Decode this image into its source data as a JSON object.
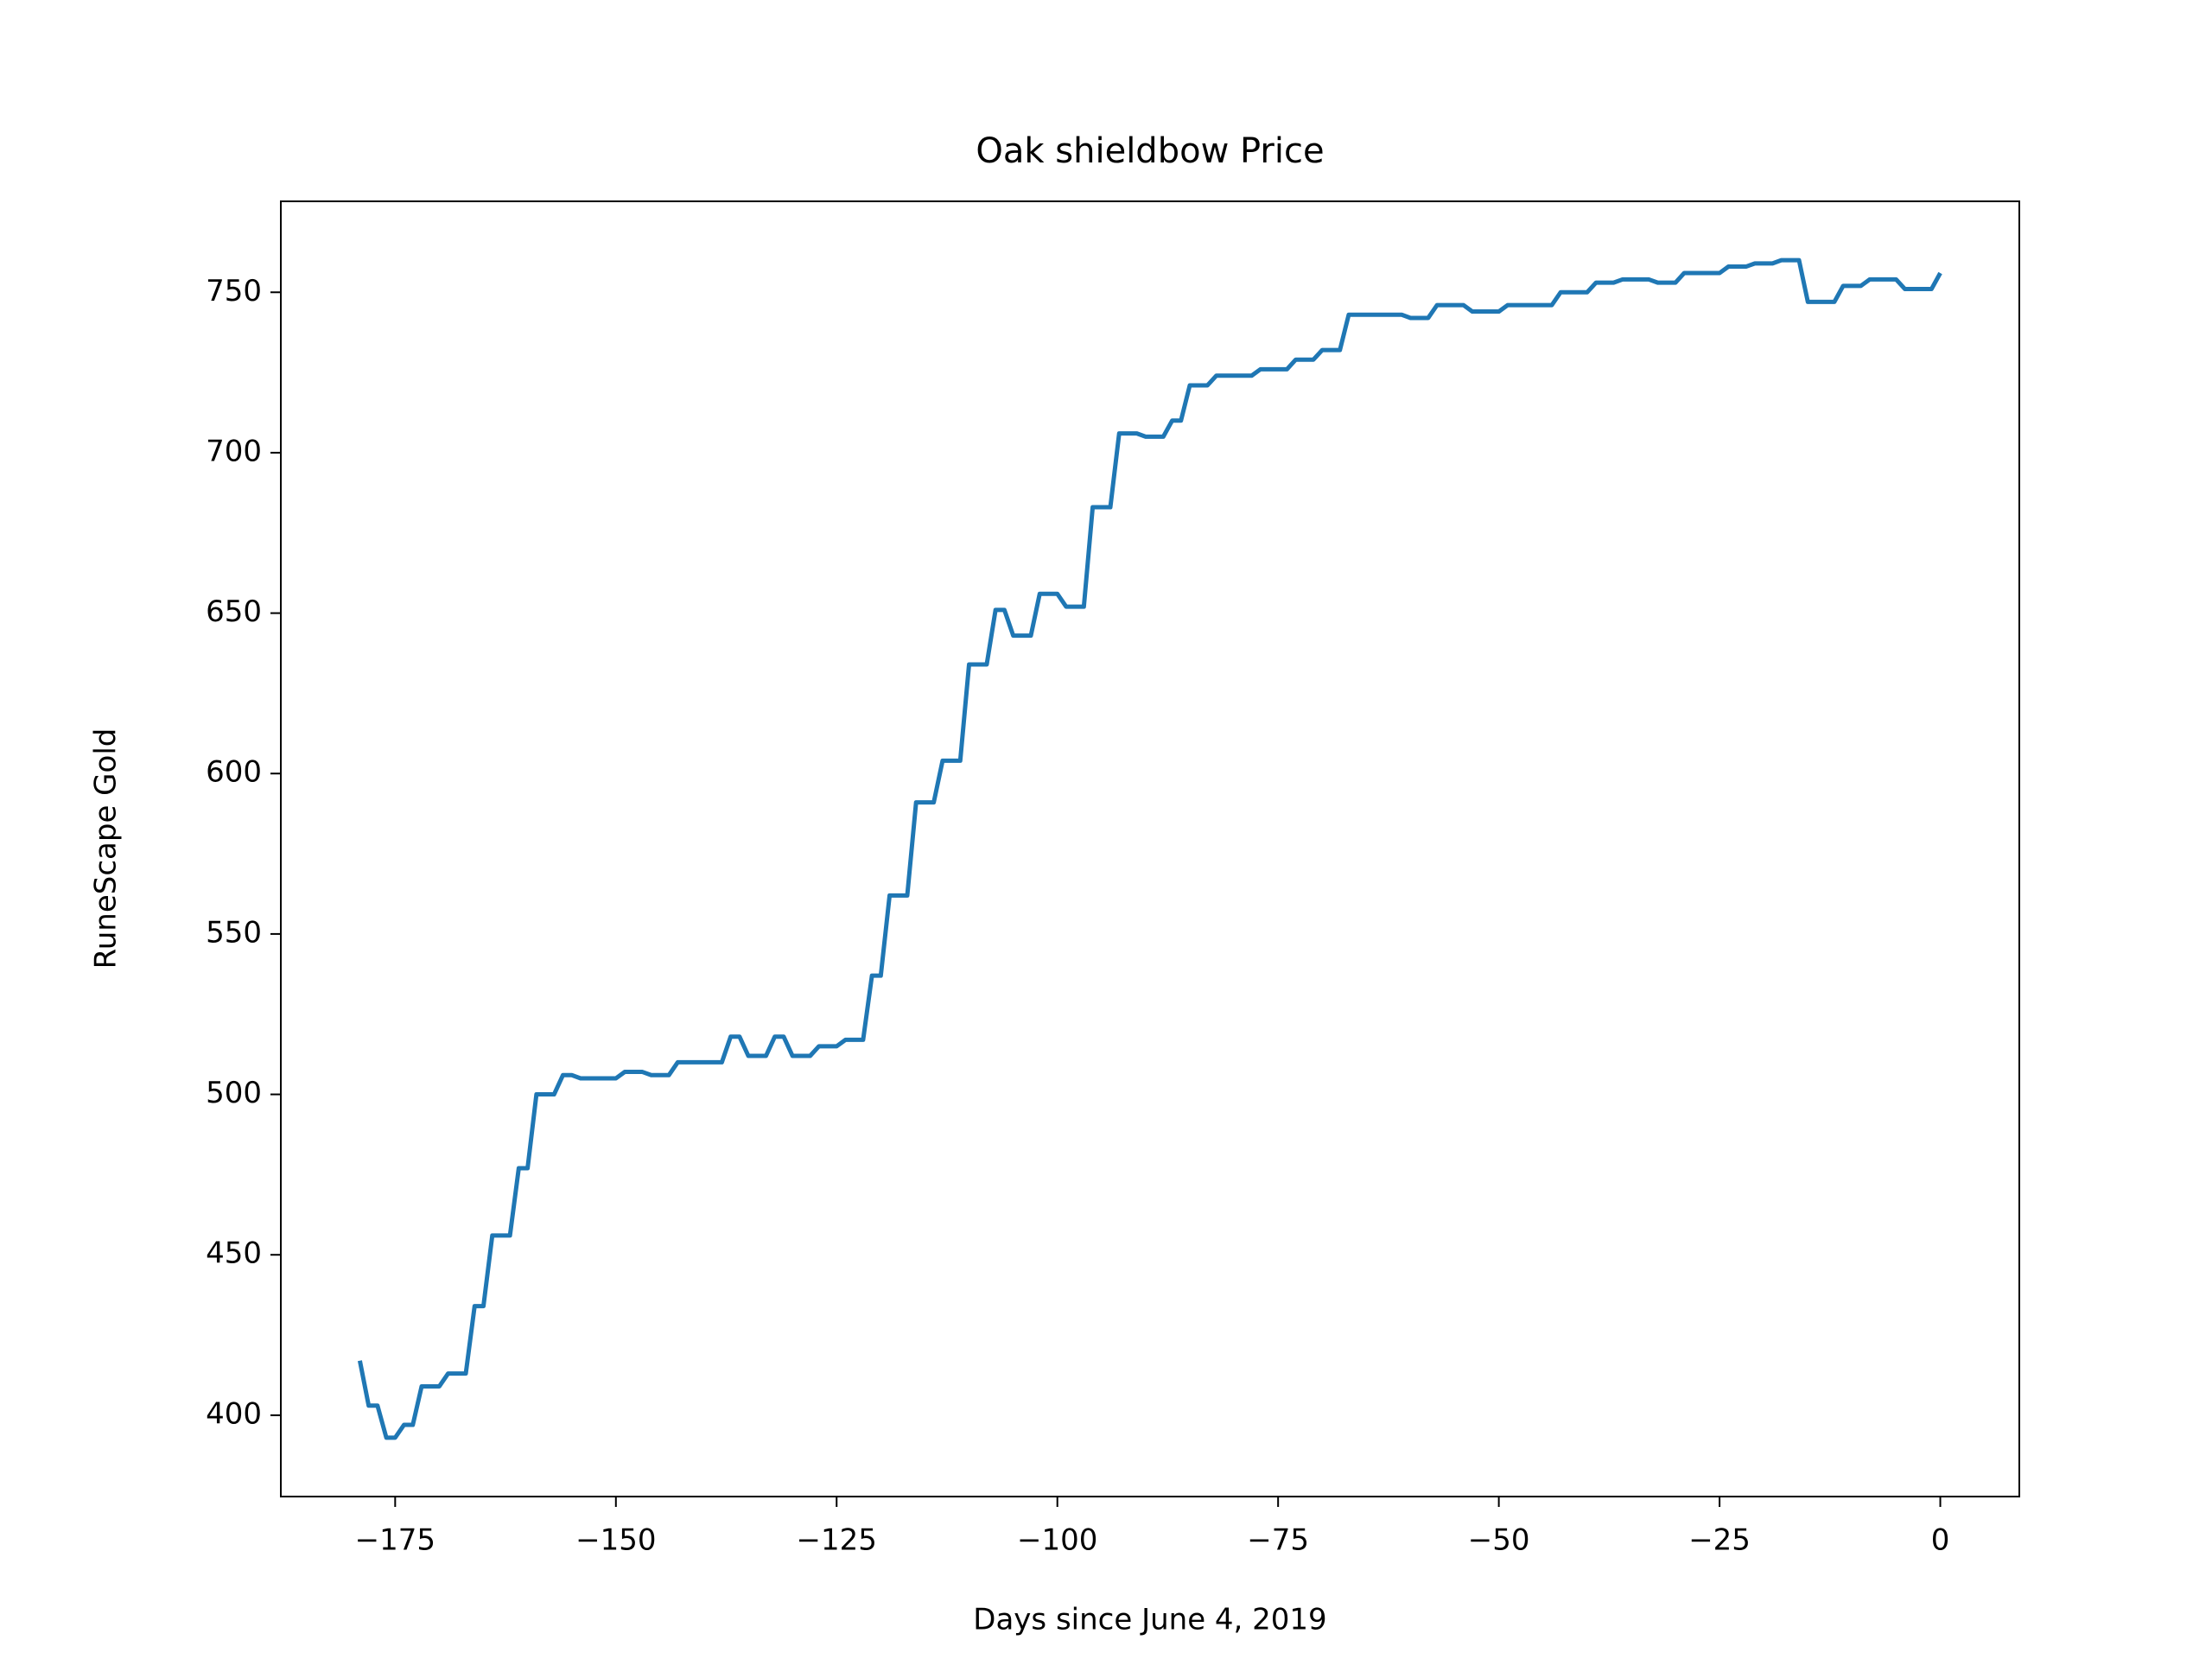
{
  "chart_data": {
    "type": "line",
    "title": "Oak shieldbow Price",
    "x_label": "Days since June 4, 2019",
    "y_label": "RuneScape Gold",
    "x": [
      -179,
      -178,
      -177,
      -176,
      -175,
      -174,
      -173,
      -172,
      -170,
      -169,
      -167,
      -166,
      -165,
      -164,
      -162,
      -161,
      -160,
      -159,
      -157,
      -156,
      -155,
      -154,
      -150,
      -149,
      -147,
      -146,
      -144,
      -143,
      -138,
      -137,
      -136,
      -135,
      -133,
      -132,
      -131,
      -130,
      -128,
      -127,
      -125,
      -124,
      -122,
      -121,
      -120,
      -119,
      -117,
      -116,
      -114,
      -113,
      -111,
      -110,
      -108,
      -107,
      -106,
      -105,
      -103,
      -102,
      -100,
      -99,
      -97,
      -96,
      -94,
      -93,
      -91,
      -90,
      -88,
      -87,
      -86,
      -85,
      -83,
      -82,
      -78,
      -77,
      -74,
      -73,
      -71,
      -70,
      -68,
      -67,
      -61,
      -60,
      -58,
      -57,
      -54,
      -53,
      -50,
      -49,
      -44,
      -43,
      -40,
      -39,
      -37,
      -36,
      -33,
      -32,
      -30,
      -29,
      -25,
      -24,
      -22,
      -21,
      -19,
      -18,
      -16,
      -15,
      -12,
      -11,
      -9,
      -8,
      -5,
      -4,
      -1,
      0
    ],
    "series": [
      {
        "name": "Price",
        "color": "#1f77b4",
        "values": [
          417,
          403,
          403,
          393,
          393,
          397,
          397,
          409,
          409,
          413,
          413,
          434,
          434,
          456,
          456,
          477,
          477,
          500,
          500,
          506,
          506,
          505,
          505,
          507,
          507,
          506,
          506,
          510,
          510,
          518,
          518,
          512,
          512,
          518,
          518,
          512,
          512,
          515,
          515,
          517,
          517,
          537,
          537,
          562,
          562,
          591,
          591,
          604,
          604,
          634,
          634,
          651,
          651,
          643,
          643,
          656,
          656,
          652,
          652,
          683,
          683,
          706,
          706,
          705,
          705,
          710,
          710,
          721,
          721,
          724,
          724,
          726,
          726,
          729,
          729,
          732,
          732,
          743,
          743,
          742,
          742,
          746,
          746,
          744,
          744,
          746,
          746,
          750,
          750,
          753,
          753,
          754,
          754,
          753,
          753,
          756,
          756,
          758,
          758,
          759,
          759,
          760,
          760,
          747,
          747,
          752,
          752,
          754,
          754,
          751,
          751,
          756
        ]
      }
    ],
    "xlim": [
      -187.95,
      8.95
    ],
    "ylim": [
      374.65,
      778.35
    ],
    "xticks": [
      {
        "value": -175,
        "label": "−175"
      },
      {
        "value": -150,
        "label": "−150"
      },
      {
        "value": -125,
        "label": "−125"
      },
      {
        "value": -100,
        "label": "−100"
      },
      {
        "value": -75,
        "label": "−75"
      },
      {
        "value": -50,
        "label": "−50"
      },
      {
        "value": -25,
        "label": "−25"
      },
      0
    ],
    "yticks": [
      400,
      450,
      500,
      550,
      600,
      650,
      700,
      750
    ],
    "grid": false
  }
}
